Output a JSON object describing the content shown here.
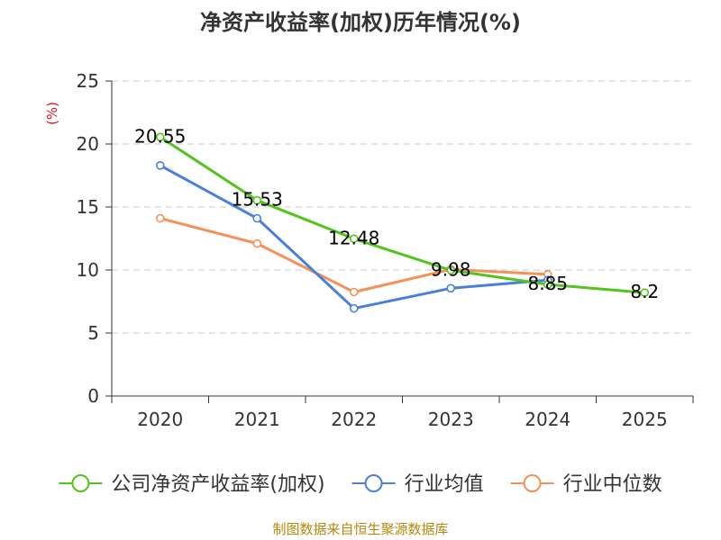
{
  "chart_data": {
    "type": "line",
    "title": "净资产收益率(加权)历年情况(%)",
    "ylabel": "(%)",
    "xlabel": "",
    "ylim": [
      0,
      25
    ],
    "yticks": [
      0,
      5,
      10,
      15,
      20,
      25
    ],
    "categories": [
      "2020",
      "2021",
      "2022",
      "2023",
      "2024",
      "2025"
    ],
    "grid": true,
    "legend_position": "bottom",
    "series": [
      {
        "name": "公司净资产收益率(加权)",
        "color": "#52c41a",
        "values": [
          20.55,
          15.53,
          12.48,
          9.98,
          8.85,
          8.2
        ],
        "labels": [
          "20.55",
          "15.53",
          "12.48",
          "9.98",
          "8.85",
          "8.2"
        ]
      },
      {
        "name": "行业均值",
        "color": "#4a7fdb",
        "values": [
          18.3,
          14.1,
          6.95,
          8.55,
          9.2,
          null
        ]
      },
      {
        "name": "行业中位数",
        "color": "#f59157",
        "values": [
          14.1,
          12.1,
          8.25,
          10.05,
          9.65,
          null
        ]
      }
    ]
  },
  "source": "制图数据来自恒生聚源数据库"
}
